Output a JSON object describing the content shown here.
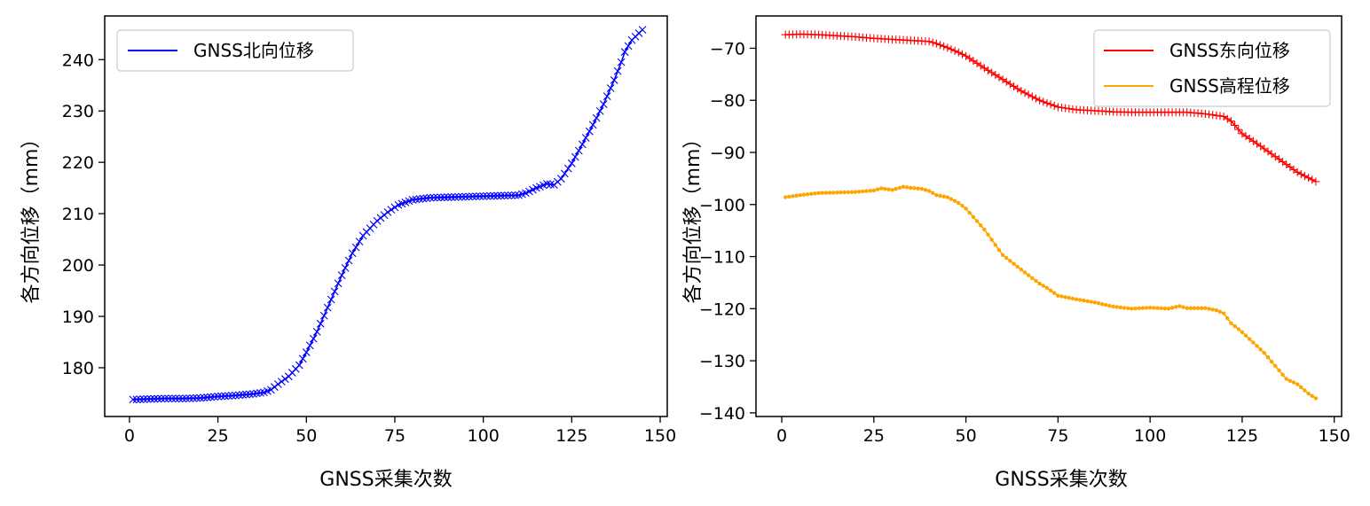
{
  "chart_data": [
    {
      "type": "line",
      "title": "",
      "xlabel": "GNSS采集次数",
      "ylabel": "各方向位移（mm）",
      "xlim": [
        -7,
        152
      ],
      "ylim": [
        170.5,
        248.5
      ],
      "xticks": [
        0,
        25,
        50,
        75,
        100,
        125,
        150
      ],
      "yticks": [
        180,
        190,
        200,
        210,
        220,
        230,
        240
      ],
      "legend_position": "top-left",
      "series": [
        {
          "name": "GNSS北向位移",
          "color": "#0000ff",
          "marker": "x",
          "x": [
            1,
            5,
            10,
            15,
            20,
            25,
            30,
            35,
            38,
            40,
            42,
            45,
            48,
            50,
            53,
            56,
            60,
            63,
            66,
            70,
            73,
            76,
            80,
            85,
            90,
            95,
            100,
            105,
            110,
            112,
            115,
            118,
            120,
            122,
            125,
            128,
            131,
            134,
            137,
            139,
            140,
            142,
            145
          ],
          "values": [
            173.8,
            173.9,
            174.0,
            174.0,
            174.1,
            174.4,
            174.6,
            174.9,
            175.2,
            175.7,
            176.8,
            178.3,
            180.5,
            183.0,
            187.0,
            191.7,
            198.0,
            202.3,
            205.7,
            208.6,
            210.3,
            211.7,
            212.7,
            213.1,
            213.2,
            213.3,
            213.4,
            213.5,
            213.6,
            214.0,
            215.0,
            215.8,
            215.6,
            216.8,
            219.8,
            223.5,
            227.3,
            231.3,
            236.0,
            239.5,
            241.5,
            243.8,
            245.8
          ]
        }
      ]
    },
    {
      "type": "line",
      "title": "",
      "xlabel": "GNSS采集次数",
      "ylabel": "各方向位移（mm）",
      "xlim": [
        -7,
        152
      ],
      "ylim": [
        -140.7,
        -63.8
      ],
      "xticks": [
        0,
        25,
        50,
        75,
        100,
        125,
        150
      ],
      "yticks": [
        -70,
        -80,
        -90,
        -100,
        -110,
        -120,
        -130,
        -140
      ],
      "legend_position": "top-right",
      "series": [
        {
          "name": "GNSS东向位移",
          "color": "#ff0000",
          "marker": "+",
          "x": [
            1,
            5,
            10,
            15,
            20,
            25,
            30,
            35,
            40,
            42,
            45,
            48,
            50,
            55,
            60,
            65,
            70,
            75,
            80,
            85,
            90,
            95,
            100,
            105,
            110,
            115,
            120,
            122,
            125,
            130,
            135,
            140,
            145
          ],
          "values": [
            -67.4,
            -67.3,
            -67.4,
            -67.6,
            -67.8,
            -68.1,
            -68.3,
            -68.5,
            -68.7,
            -69.1,
            -69.9,
            -70.8,
            -71.5,
            -73.8,
            -76.0,
            -78.2,
            -80.0,
            -81.3,
            -81.8,
            -82.0,
            -82.2,
            -82.3,
            -82.3,
            -82.3,
            -82.3,
            -82.6,
            -83.1,
            -84.0,
            -86.4,
            -88.8,
            -91.3,
            -93.8,
            -95.6
          ]
        },
        {
          "name": "GNSS高程位移",
          "color": "#ffa500",
          "marker": ".",
          "x": [
            1,
            5,
            10,
            15,
            20,
            25,
            27,
            30,
            33,
            35,
            38,
            40,
            42,
            45,
            48,
            50,
            55,
            60,
            65,
            70,
            72,
            75,
            80,
            85,
            90,
            95,
            100,
            105,
            108,
            110,
            115,
            118,
            120,
            122,
            125,
            128,
            131,
            134,
            137,
            140,
            143,
            145
          ],
          "values": [
            -98.6,
            -98.2,
            -97.8,
            -97.7,
            -97.6,
            -97.3,
            -96.9,
            -97.2,
            -96.6,
            -96.8,
            -97.0,
            -97.4,
            -98.2,
            -98.6,
            -99.7,
            -100.8,
            -104.8,
            -109.7,
            -112.5,
            -115.2,
            -116.0,
            -117.5,
            -118.2,
            -118.8,
            -119.6,
            -120.0,
            -119.8,
            -120.0,
            -119.5,
            -119.9,
            -119.9,
            -120.3,
            -120.9,
            -122.8,
            -124.5,
            -126.5,
            -128.5,
            -131.0,
            -133.5,
            -134.5,
            -136.3,
            -137.2
          ]
        }
      ]
    }
  ]
}
